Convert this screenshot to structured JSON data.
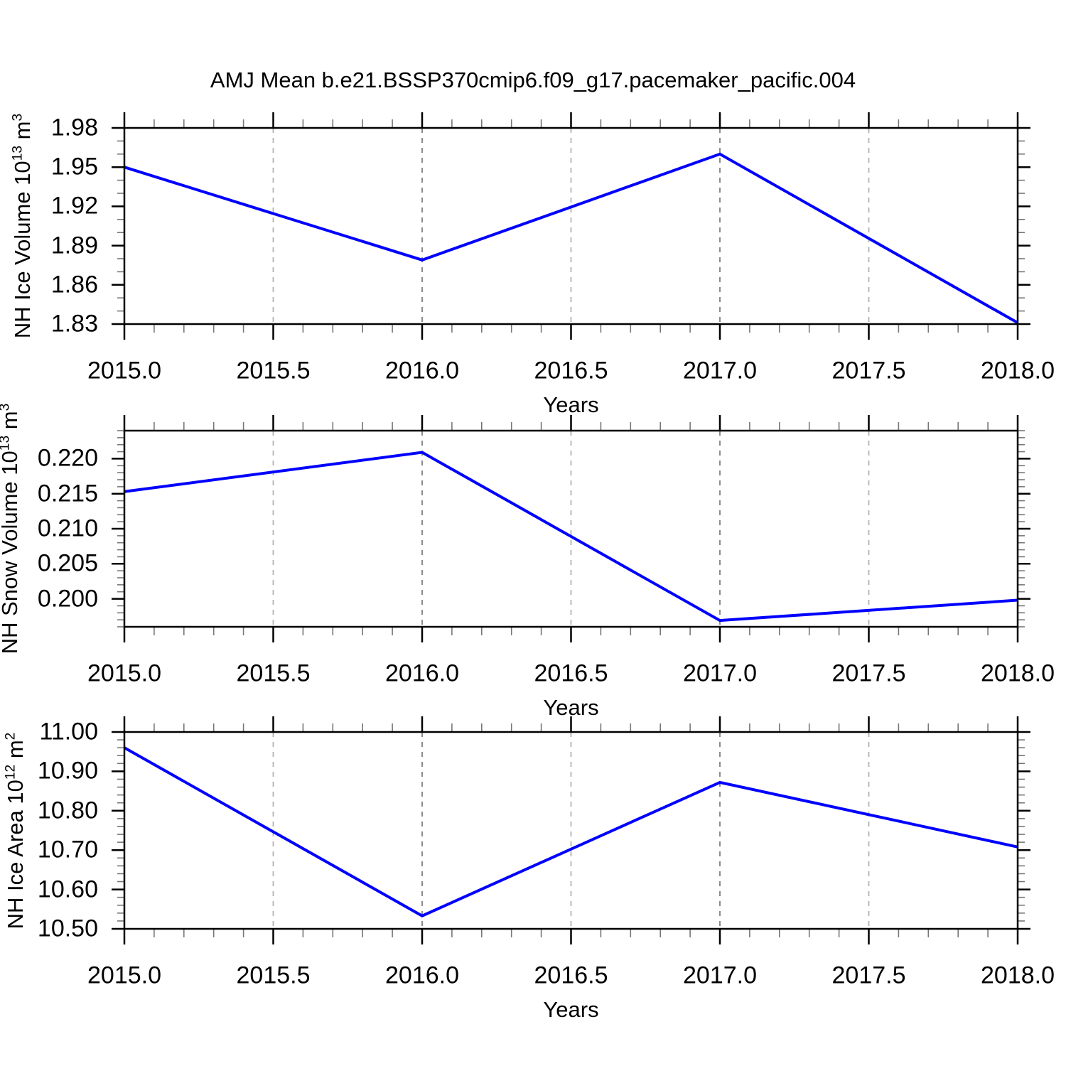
{
  "figure": {
    "title": "AMJ Mean b.e21.BSSP370cmip6.f09_g17.pacemaker_pacific.004",
    "line_color": "#0000ff",
    "grid_color_light": "#b3b3b3",
    "grid_color_dark": "#808080"
  },
  "chart_data": [
    {
      "type": "line",
      "series_name": "NH Ice Volume",
      "ylabel_text": "NH Ice Volume 10^13 m^3",
      "ylabel_parts": [
        {
          "t": "NH Ice Volume 10"
        },
        {
          "t": "13",
          "sup": true
        },
        {
          "t": " m"
        },
        {
          "t": "3",
          "sup": true
        }
      ],
      "xlabel": "Years",
      "x": [
        2015.0,
        2016.0,
        2017.0,
        2018.0
      ],
      "y": [
        1.95,
        1.879,
        1.96,
        1.831
      ],
      "xlim": [
        2015.0,
        2018.0
      ],
      "ylim": [
        1.83,
        1.98
      ],
      "xticks": [
        2015.0,
        2015.5,
        2016.0,
        2016.5,
        2017.0,
        2017.5,
        2018.0
      ],
      "xtick_labels": [
        "2015.0",
        "2015.5",
        "2016.0",
        "2016.5",
        "2017.0",
        "2017.5",
        "2018.0"
      ],
      "xminor_step": 0.1,
      "yticks": [
        1.83,
        1.86,
        1.89,
        1.92,
        1.95,
        1.98
      ],
      "ytick_labels": [
        "1.83",
        "1.86",
        "1.89",
        "1.92",
        "1.95",
        "1.98"
      ],
      "yminor_step": 0.01,
      "grid_on": true,
      "gridlines": [
        {
          "x": 2015.5,
          "dark": false
        },
        {
          "x": 2016.0,
          "dark": true
        },
        {
          "x": 2016.5,
          "dark": false
        },
        {
          "x": 2017.0,
          "dark": true
        },
        {
          "x": 2017.5,
          "dark": false
        }
      ]
    },
    {
      "type": "line",
      "series_name": "NH Snow Volume",
      "ylabel_text": "NH Snow Volume 10^13 m^3",
      "ylabel_parts": [
        {
          "t": "NH Snow Volume 10"
        },
        {
          "t": "13",
          "sup": true
        },
        {
          "t": " m"
        },
        {
          "t": "3",
          "sup": true
        }
      ],
      "xlabel": "Years",
      "x": [
        2015.0,
        2016.0,
        2017.0,
        2018.0
      ],
      "y": [
        0.2153,
        0.2209,
        0.1969,
        0.1998
      ],
      "xlim": [
        2015.0,
        2018.0
      ],
      "ylim": [
        0.196,
        0.224
      ],
      "xticks": [
        2015.0,
        2015.5,
        2016.0,
        2016.5,
        2017.0,
        2017.5,
        2018.0
      ],
      "xtick_labels": [
        "2015.0",
        "2015.5",
        "2016.0",
        "2016.5",
        "2017.0",
        "2017.5",
        "2018.0"
      ],
      "xminor_step": 0.1,
      "yticks": [
        0.2,
        0.205,
        0.21,
        0.215,
        0.22
      ],
      "ytick_labels": [
        "0.200",
        "0.205",
        "0.210",
        "0.215",
        "0.220"
      ],
      "yminor_step": 0.001,
      "grid_on": true,
      "gridlines": [
        {
          "x": 2015.5,
          "dark": false
        },
        {
          "x": 2016.0,
          "dark": true
        },
        {
          "x": 2016.5,
          "dark": false
        },
        {
          "x": 2017.0,
          "dark": true
        },
        {
          "x": 2017.5,
          "dark": false
        }
      ]
    },
    {
      "type": "line",
      "series_name": "NH Ice Area",
      "ylabel_text": "NH Ice Area 10^12 m^2",
      "ylabel_parts": [
        {
          "t": "NH Ice Area 10"
        },
        {
          "t": "12",
          "sup": true
        },
        {
          "t": " m"
        },
        {
          "t": "2",
          "sup": true
        }
      ],
      "xlabel": "Years",
      "x": [
        2015.0,
        2016.0,
        2017.0,
        2018.0
      ],
      "y": [
        10.96,
        10.533,
        10.872,
        10.708
      ],
      "xlim": [
        2015.0,
        2018.0
      ],
      "ylim": [
        10.5,
        11.0
      ],
      "xticks": [
        2015.0,
        2015.5,
        2016.0,
        2016.5,
        2017.0,
        2017.5,
        2018.0
      ],
      "xtick_labels": [
        "2015.0",
        "2015.5",
        "2016.0",
        "2016.5",
        "2017.0",
        "2017.5",
        "2018.0"
      ],
      "xminor_step": 0.1,
      "yticks": [
        10.5,
        10.6,
        10.7,
        10.8,
        10.9,
        11.0
      ],
      "ytick_labels": [
        "10.50",
        "10.60",
        "10.70",
        "10.80",
        "10.90",
        "11.00"
      ],
      "yminor_step": 0.02,
      "grid_on": true,
      "gridlines": [
        {
          "x": 2015.5,
          "dark": false
        },
        {
          "x": 2016.0,
          "dark": true
        },
        {
          "x": 2016.5,
          "dark": false
        },
        {
          "x": 2017.0,
          "dark": true
        },
        {
          "x": 2017.5,
          "dark": false
        }
      ]
    }
  ]
}
